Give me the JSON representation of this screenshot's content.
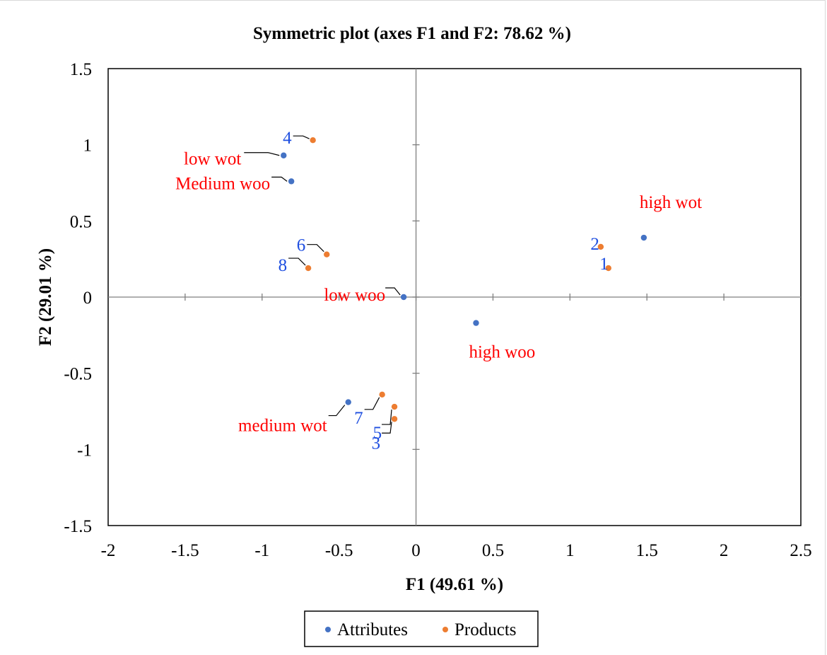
{
  "chart_data": {
    "type": "scatter",
    "title": "Symmetric plot (axes F1 and F2: 78.62 %)",
    "xlabel": "F1 (49.61 %)",
    "ylabel": "F2 (29.01 %)",
    "xlim": [
      -2,
      2.5
    ],
    "ylim": [
      -1.5,
      1.5
    ],
    "x_ticks": [
      "-2",
      "-1.5",
      "-1",
      "-0.5",
      "0",
      "0.5",
      "1",
      "1.5",
      "2",
      "2.5"
    ],
    "y_ticks": [
      "1.5",
      "1",
      "0.5",
      "0",
      "-0.5",
      "-1",
      "-1.5"
    ],
    "grid": false,
    "legend_position": "bottom",
    "colors": {
      "Attributes": "#4472c4",
      "Products": "#ed7d31",
      "attribute_label": "#ff0000",
      "product_label": "#1f4fe0"
    },
    "series": [
      {
        "name": "Attributes",
        "points": [
          {
            "label": "low wot",
            "x": -0.86,
            "y": 0.93
          },
          {
            "label": "Medium woo",
            "x": -0.81,
            "y": 0.76
          },
          {
            "label": "low woo",
            "x": -0.08,
            "y": 0.0
          },
          {
            "label": "high wot",
            "x": 1.48,
            "y": 0.39
          },
          {
            "label": "high woo",
            "x": 0.39,
            "y": -0.17
          },
          {
            "label": "medium wot",
            "x": -0.44,
            "y": -0.69
          }
        ]
      },
      {
        "name": "Products",
        "points": [
          {
            "label": "4",
            "x": -0.67,
            "y": 1.03
          },
          {
            "label": "6",
            "x": -0.58,
            "y": 0.28
          },
          {
            "label": "8",
            "x": -0.7,
            "y": 0.19
          },
          {
            "label": "2",
            "x": 1.2,
            "y": 0.33
          },
          {
            "label": "1",
            "x": 1.25,
            "y": 0.19
          },
          {
            "label": "7",
            "x": -0.22,
            "y": -0.64
          },
          {
            "label": "5",
            "x": -0.14,
            "y": -0.72
          },
          {
            "label": "3",
            "x": -0.14,
            "y": -0.8
          }
        ]
      }
    ]
  }
}
